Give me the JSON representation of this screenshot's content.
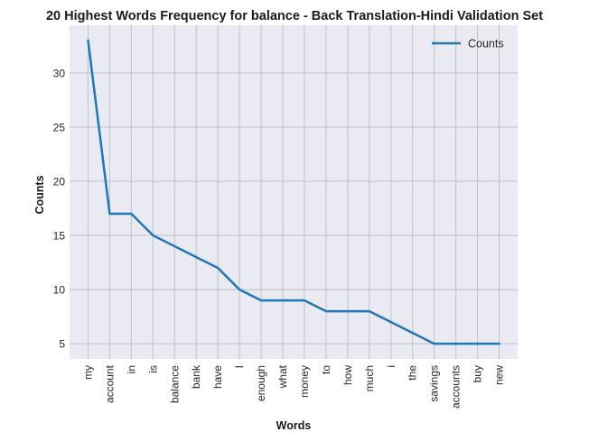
{
  "chart_data": {
    "type": "line",
    "title": "20 Highest Words Frequency for balance - Back Translation-Hindi Validation Set",
    "xlabel": "Words",
    "ylabel": "Counts",
    "categories": [
      "my",
      "account",
      "in",
      "is",
      "balance",
      "bank",
      "have",
      "I",
      "enough",
      "what",
      "money",
      "to",
      "how",
      "much",
      "i",
      "the",
      "savings",
      "accounts",
      "buy",
      "new"
    ],
    "series": [
      {
        "name": "Counts",
        "values": [
          33,
          17,
          17,
          15,
          14,
          13,
          12,
          10,
          9,
          9,
          9,
          8,
          8,
          8,
          7,
          6,
          5,
          5,
          5,
          5
        ]
      }
    ],
    "yticks": [
      5,
      10,
      15,
      20,
      25,
      30
    ],
    "ylim": [
      3.6,
      34.4
    ],
    "grid": true,
    "legend": "top-right",
    "colors": {
      "line": "#1f77b4",
      "plot_bg": "#eaeaf2",
      "grid": "#c0c0c8"
    }
  }
}
